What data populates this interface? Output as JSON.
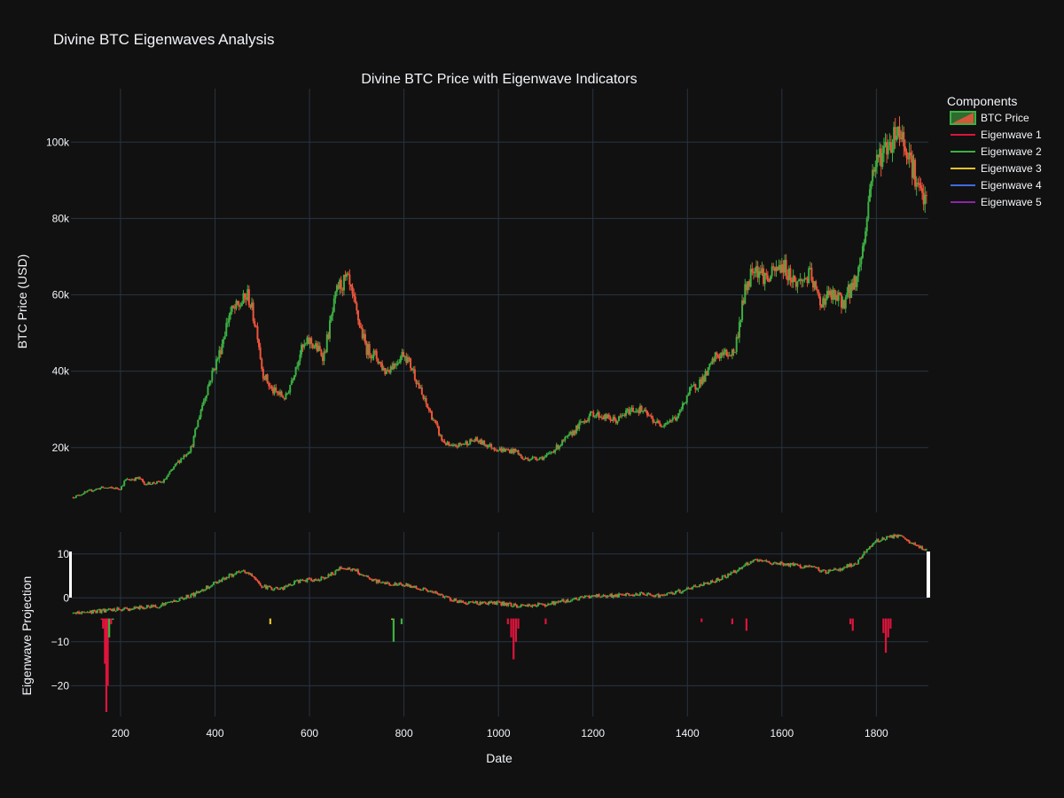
{
  "page": {
    "title": "Divine BTC Eigenwaves Analysis"
  },
  "chart_data": {
    "type": "candlestick",
    "subtitle": "Divine BTC Price with Eigenwave Indicators",
    "xlabel": "Date",
    "price_ylabel": "BTC Price (USD)",
    "eig_ylabel": "Eigenwave Projection",
    "xlim": [
      95,
      1910
    ],
    "price_ylim": [
      3000,
      114000
    ],
    "eig_ylim": [
      -27,
      15
    ],
    "x_ticks": [
      200,
      400,
      600,
      800,
      1000,
      1200,
      1400,
      1600,
      1800
    ],
    "x_tick_labels": [
      "200",
      "400",
      "600",
      "800",
      "1000",
      "1200",
      "1400",
      "1600",
      "1800"
    ],
    "price_y_ticks": [
      20000,
      40000,
      60000,
      80000,
      100000
    ],
    "price_y_tick_labels": [
      "20k",
      "40k",
      "60k",
      "80k",
      "100k"
    ],
    "eig_y_ticks": [
      10,
      0,
      -10,
      -20
    ],
    "eig_y_tick_labels": [
      "10",
      "0",
      "−10",
      "−20"
    ],
    "colors": {
      "background": "#111111",
      "grid": "#283442",
      "increasing": "#3cb043",
      "decreasing": "#ef553b"
    },
    "legend": {
      "title": "Components",
      "position": "top-right",
      "items": [
        {
          "label": "BTC Price",
          "color": "#3cb043",
          "kind": "candle"
        },
        {
          "label": "Eigenwave 1",
          "color": "#dc143c",
          "kind": "line"
        },
        {
          "label": "Eigenwave 2",
          "color": "#3cb043",
          "kind": "line"
        },
        {
          "label": "Eigenwave 3",
          "color": "#e6c229",
          "kind": "line"
        },
        {
          "label": "Eigenwave 4",
          "color": "#4169e1",
          "kind": "line"
        },
        {
          "label": "Eigenwave 5",
          "color": "#8e24aa",
          "kind": "line"
        }
      ]
    },
    "price_path": [
      [
        100,
        7000
      ],
      [
        130,
        8500
      ],
      [
        160,
        9500
      ],
      [
        200,
        9300
      ],
      [
        210,
        11500
      ],
      [
        240,
        12000
      ],
      [
        250,
        10500
      ],
      [
        290,
        11000
      ],
      [
        320,
        16000
      ],
      [
        350,
        20000
      ],
      [
        370,
        30000
      ],
      [
        390,
        38000
      ],
      [
        410,
        45000
      ],
      [
        430,
        55000
      ],
      [
        450,
        57000
      ],
      [
        470,
        60000
      ],
      [
        490,
        50000
      ],
      [
        500,
        40000
      ],
      [
        520,
        35000
      ],
      [
        550,
        33000
      ],
      [
        580,
        45000
      ],
      [
        600,
        48000
      ],
      [
        630,
        44000
      ],
      [
        660,
        62000
      ],
      [
        680,
        64000
      ],
      [
        700,
        55000
      ],
      [
        720,
        46000
      ],
      [
        740,
        44000
      ],
      [
        760,
        40000
      ],
      [
        780,
        42000
      ],
      [
        800,
        45000
      ],
      [
        820,
        40000
      ],
      [
        840,
        33000
      ],
      [
        860,
        28000
      ],
      [
        880,
        22000
      ],
      [
        900,
        20000
      ],
      [
        950,
        22000
      ],
      [
        1000,
        19500
      ],
      [
        1040,
        19000
      ],
      [
        1050,
        17000
      ],
      [
        1100,
        17500
      ],
      [
        1150,
        23000
      ],
      [
        1180,
        27000
      ],
      [
        1200,
        29000
      ],
      [
        1250,
        27000
      ],
      [
        1280,
        30000
      ],
      [
        1300,
        30000
      ],
      [
        1340,
        26000
      ],
      [
        1380,
        28000
      ],
      [
        1400,
        34000
      ],
      [
        1440,
        39000
      ],
      [
        1460,
        44000
      ],
      [
        1500,
        45000
      ],
      [
        1520,
        60000
      ],
      [
        1540,
        68000
      ],
      [
        1570,
        64000
      ],
      [
        1600,
        68000
      ],
      [
        1630,
        63000
      ],
      [
        1660,
        65000
      ],
      [
        1680,
        58000
      ],
      [
        1700,
        60000
      ],
      [
        1730,
        58000
      ],
      [
        1760,
        65000
      ],
      [
        1775,
        75000
      ],
      [
        1790,
        92000
      ],
      [
        1810,
        97000
      ],
      [
        1830,
        100000
      ],
      [
        1845,
        104000
      ],
      [
        1870,
        97000
      ],
      [
        1890,
        87000
      ],
      [
        1905,
        84000
      ]
    ],
    "eig_path": [
      [
        100,
        -3.5
      ],
      [
        180,
        -2.8
      ],
      [
        220,
        -2.5
      ],
      [
        280,
        -1.8
      ],
      [
        320,
        -0.5
      ],
      [
        360,
        1
      ],
      [
        400,
        3.5
      ],
      [
        430,
        5
      ],
      [
        460,
        6
      ],
      [
        480,
        5
      ],
      [
        500,
        2.5
      ],
      [
        540,
        2
      ],
      [
        580,
        4
      ],
      [
        610,
        4
      ],
      [
        640,
        5
      ],
      [
        670,
        7
      ],
      [
        700,
        6
      ],
      [
        730,
        4
      ],
      [
        780,
        3
      ],
      [
        800,
        3
      ],
      [
        840,
        2
      ],
      [
        880,
        0.5
      ],
      [
        920,
        -1
      ],
      [
        1000,
        -1.2
      ],
      [
        1040,
        -1.8
      ],
      [
        1100,
        -1.5
      ],
      [
        1150,
        -0.5
      ],
      [
        1200,
        0.5
      ],
      [
        1250,
        0.5
      ],
      [
        1300,
        0.8
      ],
      [
        1350,
        0.5
      ],
      [
        1400,
        2
      ],
      [
        1460,
        4
      ],
      [
        1500,
        6
      ],
      [
        1540,
        8.5
      ],
      [
        1580,
        8
      ],
      [
        1620,
        7.5
      ],
      [
        1660,
        7
      ],
      [
        1690,
        6
      ],
      [
        1720,
        6.5
      ],
      [
        1760,
        8
      ],
      [
        1780,
        11
      ],
      [
        1800,
        13
      ],
      [
        1830,
        14
      ],
      [
        1850,
        14
      ],
      [
        1880,
        12
      ],
      [
        1905,
        11
      ]
    ],
    "eigen_spikes": [
      {
        "x": 160,
        "to": -5,
        "color": "#dc143c"
      },
      {
        "x": 163,
        "to": -7,
        "color": "#dc143c"
      },
      {
        "x": 167,
        "to": -15,
        "color": "#dc143c"
      },
      {
        "x": 170,
        "to": -26,
        "color": "#dc143c"
      },
      {
        "x": 173,
        "to": -20,
        "color": "#dc143c"
      },
      {
        "x": 176,
        "to": -9,
        "color": "#3cb043"
      },
      {
        "x": 180,
        "to": -6,
        "color": "#dc143c"
      },
      {
        "x": 184,
        "to": -5,
        "color": "#3cb043"
      },
      {
        "x": 517,
        "to": -6,
        "color": "#e6c229"
      },
      {
        "x": 775,
        "to": -5,
        "color": "#e6c229"
      },
      {
        "x": 778,
        "to": -10,
        "color": "#3cb043"
      },
      {
        "x": 795,
        "to": -6,
        "color": "#3cb043"
      },
      {
        "x": 1020,
        "to": -6,
        "color": "#dc143c"
      },
      {
        "x": 1027,
        "to": -9,
        "color": "#dc143c"
      },
      {
        "x": 1032,
        "to": -14,
        "color": "#dc143c"
      },
      {
        "x": 1037,
        "to": -10,
        "color": "#dc143c"
      },
      {
        "x": 1042,
        "to": -7,
        "color": "#dc143c"
      },
      {
        "x": 1100,
        "to": -6,
        "color": "#dc143c"
      },
      {
        "x": 1430,
        "to": -5.5,
        "color": "#dc143c"
      },
      {
        "x": 1495,
        "to": -6,
        "color": "#dc143c"
      },
      {
        "x": 1525,
        "to": -7.5,
        "color": "#dc143c"
      },
      {
        "x": 1745,
        "to": -6,
        "color": "#dc143c"
      },
      {
        "x": 1750,
        "to": -7.5,
        "color": "#dc143c"
      },
      {
        "x": 1815,
        "to": -8,
        "color": "#dc143c"
      },
      {
        "x": 1820,
        "to": -12.5,
        "color": "#dc143c"
      },
      {
        "x": 1825,
        "to": -9,
        "color": "#dc143c"
      },
      {
        "x": 1830,
        "to": -7,
        "color": "#dc143c"
      }
    ]
  }
}
